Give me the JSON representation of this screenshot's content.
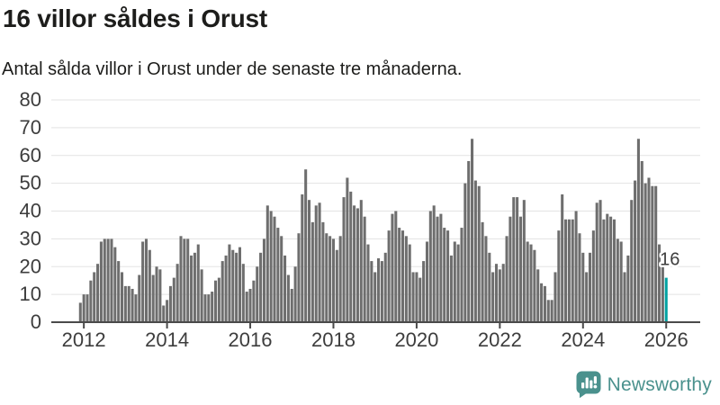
{
  "header": {
    "title": "16 villor såldes i Orust",
    "subtitle": "Antal sålda villor i Orust under de senaste tre månaderna."
  },
  "chart_data": {
    "type": "bar",
    "title": "16 villor såldes i Orust",
    "xlabel": "",
    "ylabel": "",
    "x_monthly_start": "2011-12",
    "x_monthly_end": "2026-01",
    "values": [
      7,
      10,
      10,
      15,
      18,
      21,
      29,
      30,
      30,
      30,
      27,
      22,
      18,
      13,
      13,
      12,
      10,
      17,
      29,
      30,
      26,
      17,
      20,
      19,
      6,
      8,
      13,
      16,
      21,
      31,
      30,
      30,
      24,
      25,
      28,
      19,
      10,
      10,
      11,
      15,
      16,
      22,
      24,
      28,
      26,
      25,
      27,
      21,
      11,
      12,
      15,
      20,
      25,
      30,
      42,
      40,
      38,
      34,
      31,
      24,
      17,
      12,
      20,
      32,
      46,
      55,
      44,
      36,
      42,
      43,
      36,
      32,
      31,
      30,
      26,
      31,
      45,
      52,
      47,
      42,
      41,
      44,
      38,
      28,
      22,
      18,
      23,
      22,
      25,
      33,
      39,
      40,
      34,
      33,
      31,
      28,
      18,
      18,
      16,
      22,
      29,
      40,
      42,
      38,
      39,
      34,
      33,
      24,
      29,
      28,
      34,
      50,
      58,
      66,
      51,
      49,
      36,
      31,
      25,
      18,
      21,
      19,
      21,
      31,
      38,
      45,
      45,
      38,
      44,
      29,
      28,
      26,
      19,
      14,
      13,
      8,
      8,
      18,
      33,
      46,
      37,
      37,
      37,
      40,
      32,
      25,
      18,
      25,
      33,
      43,
      44,
      37,
      39,
      38,
      37,
      30,
      29,
      18,
      24,
      44,
      51,
      66,
      58,
      50,
      52,
      49,
      49,
      28,
      20,
      16
    ],
    "highlight": {
      "index": 169,
      "value": 16,
      "label": "16",
      "color": "#00a1a1"
    },
    "bar_color": "#6e6e6e",
    "yticks": [
      0,
      10,
      20,
      30,
      40,
      50,
      60,
      70,
      80
    ],
    "ylim": [
      0,
      80
    ],
    "xticks": [
      2012,
      2014,
      2016,
      2018,
      2020,
      2022,
      2024,
      2026
    ],
    "grid": true,
    "legend": "none"
  },
  "colors": {
    "grid": "#e3e3e3",
    "axis_line": "#4a4a4a",
    "axis_label": "#3d3d3d",
    "annotation": "#3d3d3d"
  },
  "footer": {
    "brand": "Newsworthy",
    "brand_color": "#4a918d",
    "icon": "newsworthy-logo-icon"
  }
}
